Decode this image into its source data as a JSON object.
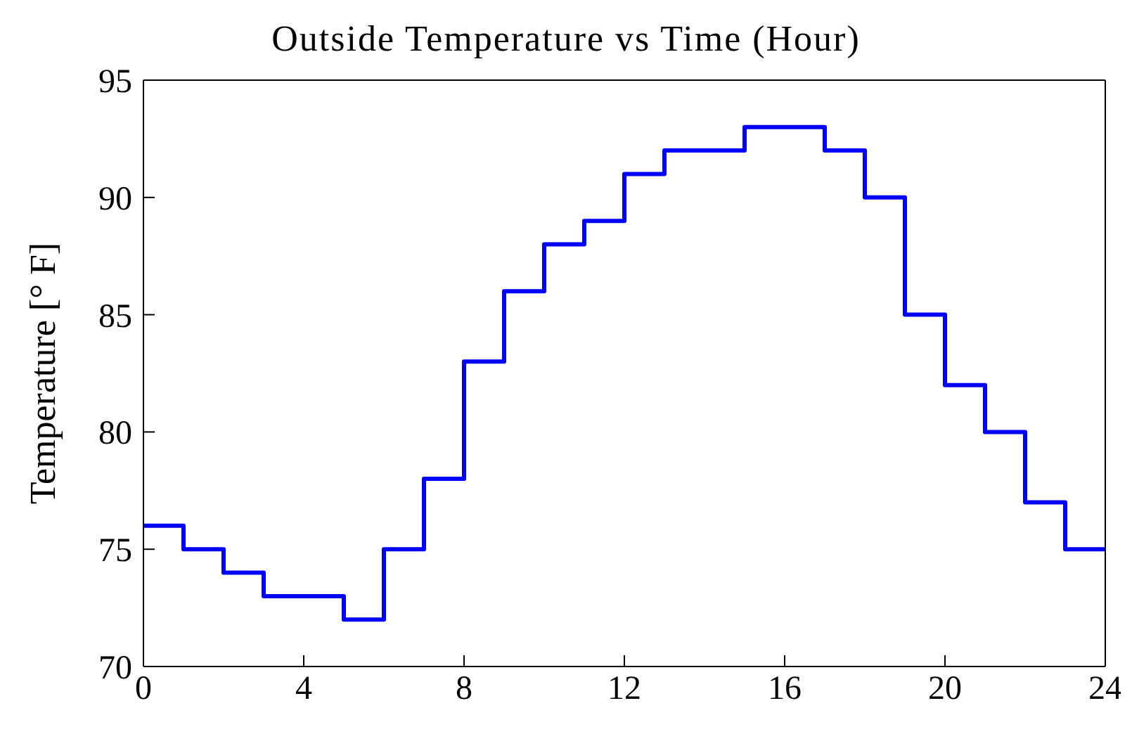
{
  "chart_data": {
    "type": "step",
    "title": "Outside Temperature vs Time (Hour)",
    "ylabel": "Temperature [° F]",
    "x": [
      0,
      1,
      2,
      3,
      4,
      5,
      6,
      7,
      8,
      9,
      10,
      11,
      12,
      13,
      14,
      15,
      16,
      17,
      18,
      19,
      20,
      21,
      22,
      23,
      24
    ],
    "series": [
      {
        "color": "#0000ff",
        "values": [
          76,
          75,
          74,
          73,
          73,
          72,
          75,
          78,
          83,
          86,
          88,
          89,
          91,
          92,
          92,
          93,
          93,
          92,
          90,
          85,
          82,
          80,
          77,
          75,
          75
        ]
      }
    ],
    "xlim": [
      0,
      24
    ],
    "xticks": [
      0,
      4,
      8,
      12,
      16,
      20,
      24
    ],
    "ylim": [
      70,
      95
    ],
    "yticks": [
      70,
      75,
      80,
      85,
      90,
      95
    ],
    "grid": false,
    "legend": false,
    "marker": "none",
    "line_style": "solid"
  }
}
